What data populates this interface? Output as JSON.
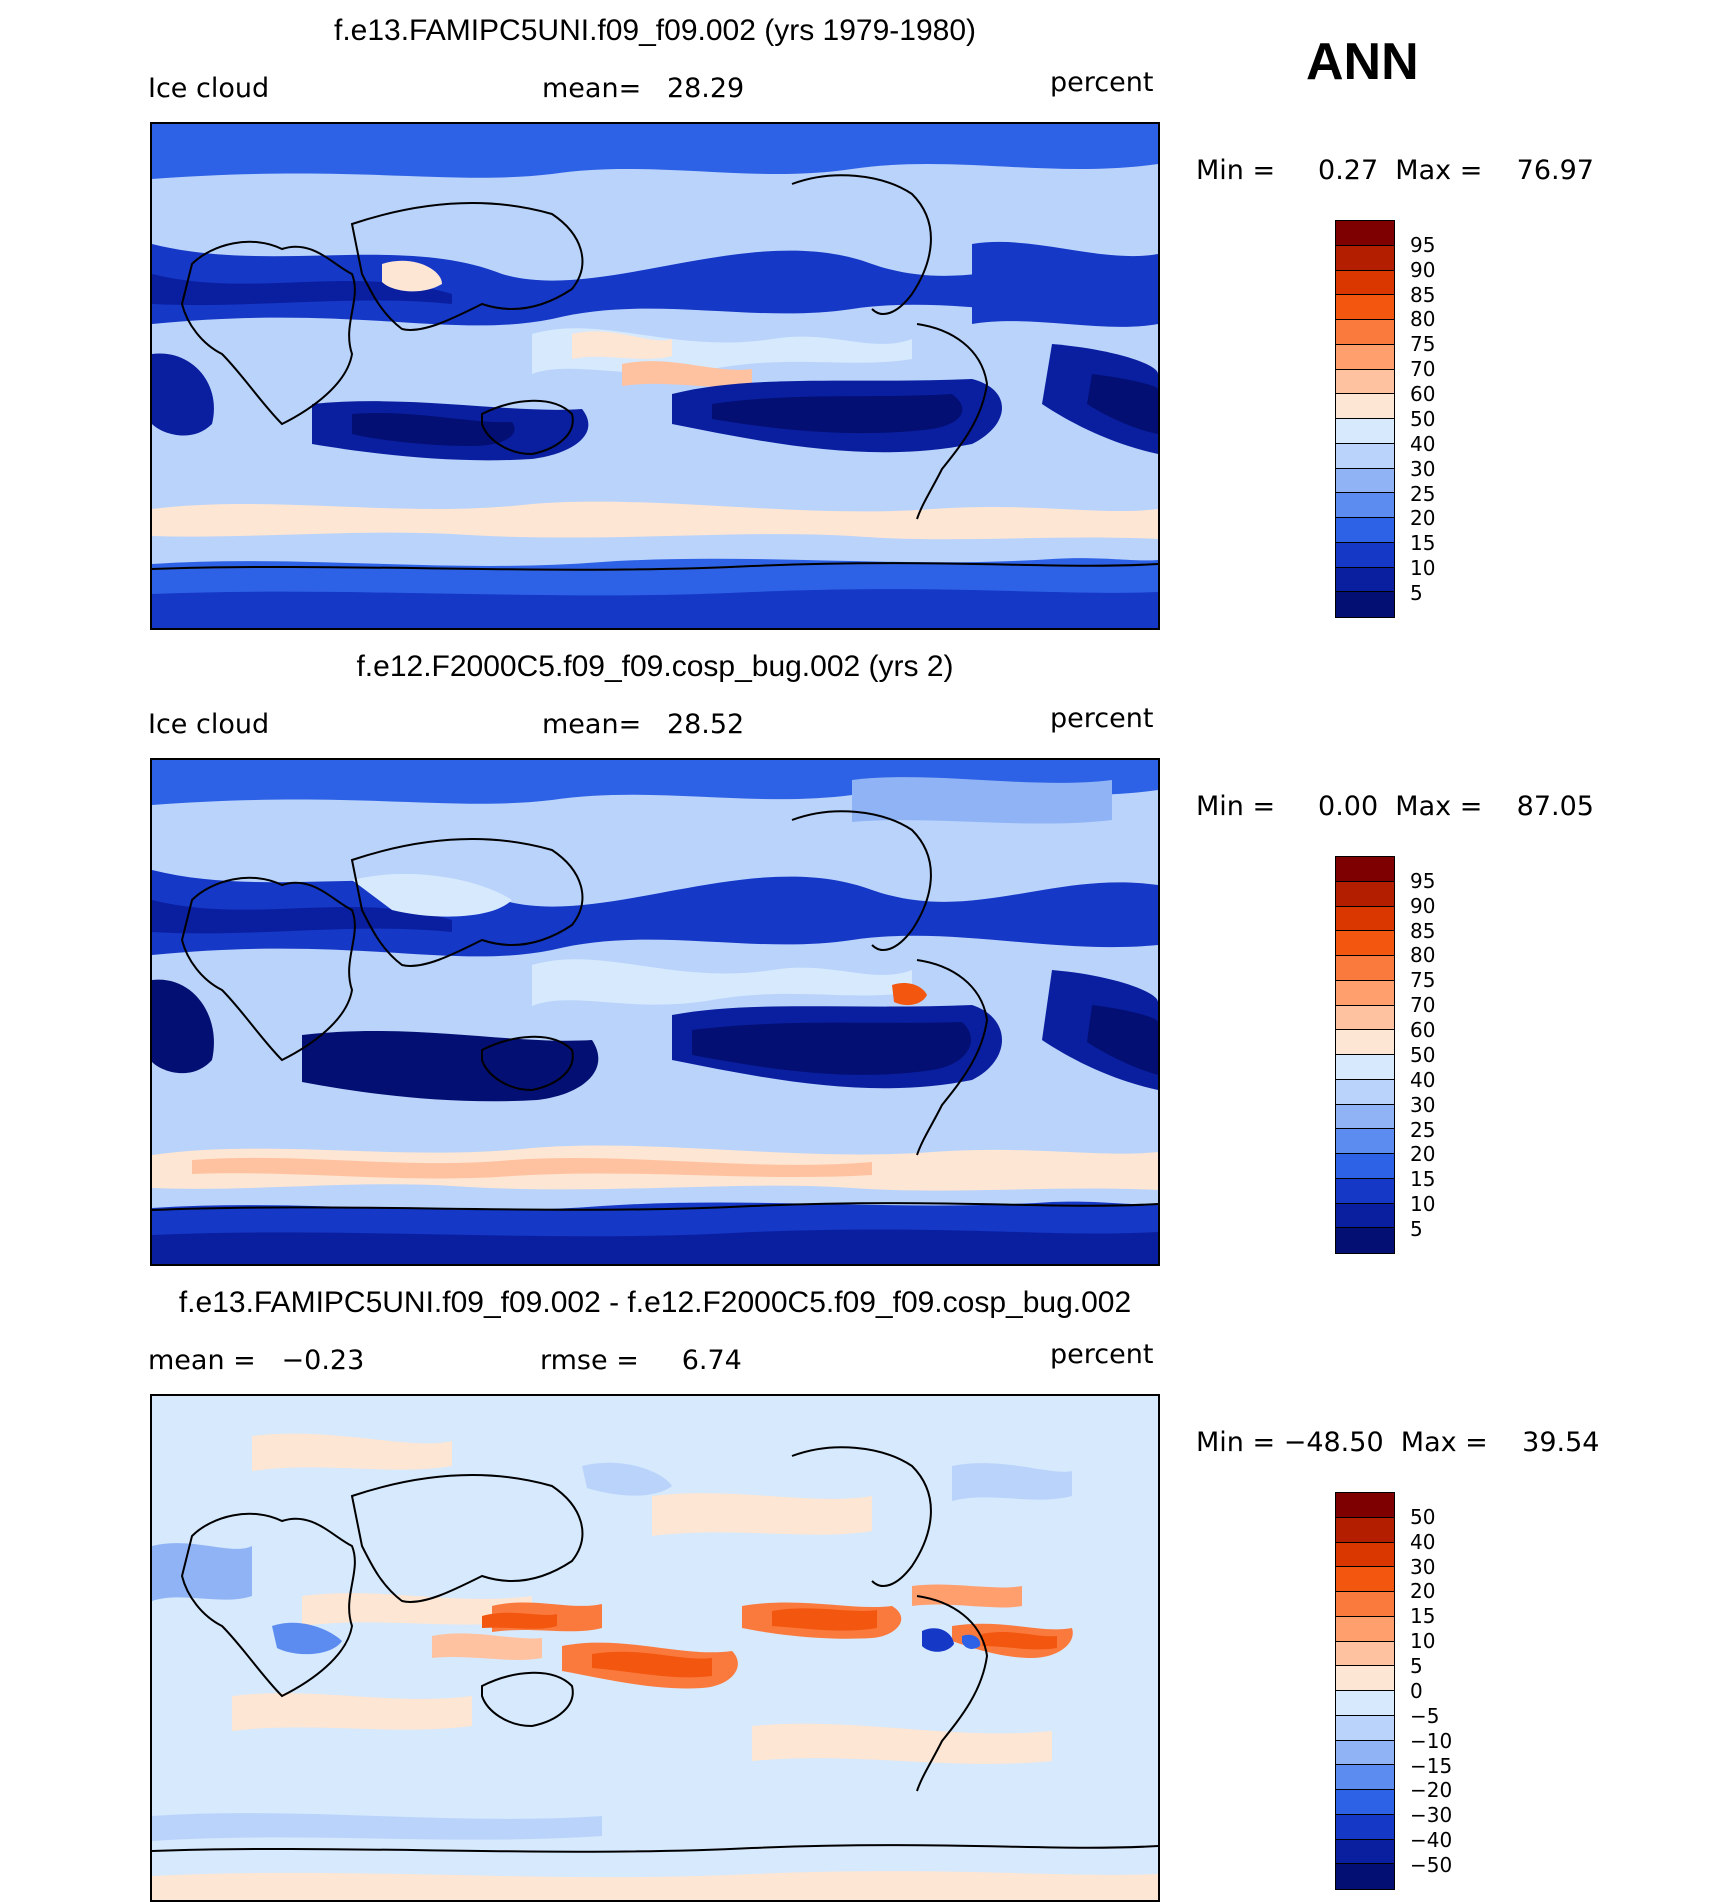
{
  "season": "ANN",
  "units": "percent",
  "panels": [
    {
      "title": "f.e13.FAMIPC5UNI.f09_f09.002 (yrs 1979-1980)",
      "left_label": "Ice cloud",
      "center_label": "mean=   28.29",
      "right_label": "percent",
      "minmax": "Min =     0.27  Max =    76.97",
      "levels": [
        "95",
        "90",
        "85",
        "80",
        "75",
        "70",
        "60",
        "50",
        "40",
        "30",
        "25",
        "20",
        "15",
        "10",
        "5"
      ],
      "colors": [
        "#7f0000",
        "#b31e00",
        "#d93600",
        "#f2560f",
        "#fa7a3d",
        "#ff9f6e",
        "#ffc2a0",
        "#fde6d3",
        "#d6e9fd",
        "#b9d3fb",
        "#8fb3f5",
        "#5d8cf0",
        "#2e62e6",
        "#1538c7",
        "#0a1fa0",
        "#030f73"
      ]
    },
    {
      "title": "f.e12.F2000C5.f09_f09.cosp_bug.002 (yrs 2)",
      "left_label": "Ice cloud",
      "center_label": "mean=   28.52",
      "right_label": "percent",
      "minmax": "Min =     0.00  Max =    87.05",
      "levels": [
        "95",
        "90",
        "85",
        "80",
        "75",
        "70",
        "60",
        "50",
        "40",
        "30",
        "25",
        "20",
        "15",
        "10",
        "5"
      ],
      "colors": [
        "#7f0000",
        "#b31e00",
        "#d93600",
        "#f2560f",
        "#fa7a3d",
        "#ff9f6e",
        "#ffc2a0",
        "#fde6d3",
        "#d6e9fd",
        "#b9d3fb",
        "#8fb3f5",
        "#5d8cf0",
        "#2e62e6",
        "#1538c7",
        "#0a1fa0",
        "#030f73"
      ]
    },
    {
      "title": "f.e13.FAMIPC5UNI.f09_f09.002 - f.e12.F2000C5.f09_f09.cosp_bug.002",
      "left_label": "mean =   −0.23",
      "center_label": "rmse =     6.74",
      "right_label": "percent",
      "minmax": "Min = −48.50  Max =    39.54",
      "levels": [
        "50",
        "40",
        "30",
        "20",
        "15",
        "10",
        "5",
        "0",
        "−5",
        "−10",
        "−15",
        "−20",
        "−30",
        "−40",
        "−50"
      ],
      "colors": [
        "#7f0000",
        "#b31e00",
        "#d93600",
        "#f2560f",
        "#fa7a3d",
        "#ff9f6e",
        "#ffc2a0",
        "#fde6d3",
        "#d6e9fd",
        "#b9d3fb",
        "#8fb3f5",
        "#5d8cf0",
        "#2e62e6",
        "#1538c7",
        "#0a1fa0",
        "#030f73"
      ]
    }
  ]
}
